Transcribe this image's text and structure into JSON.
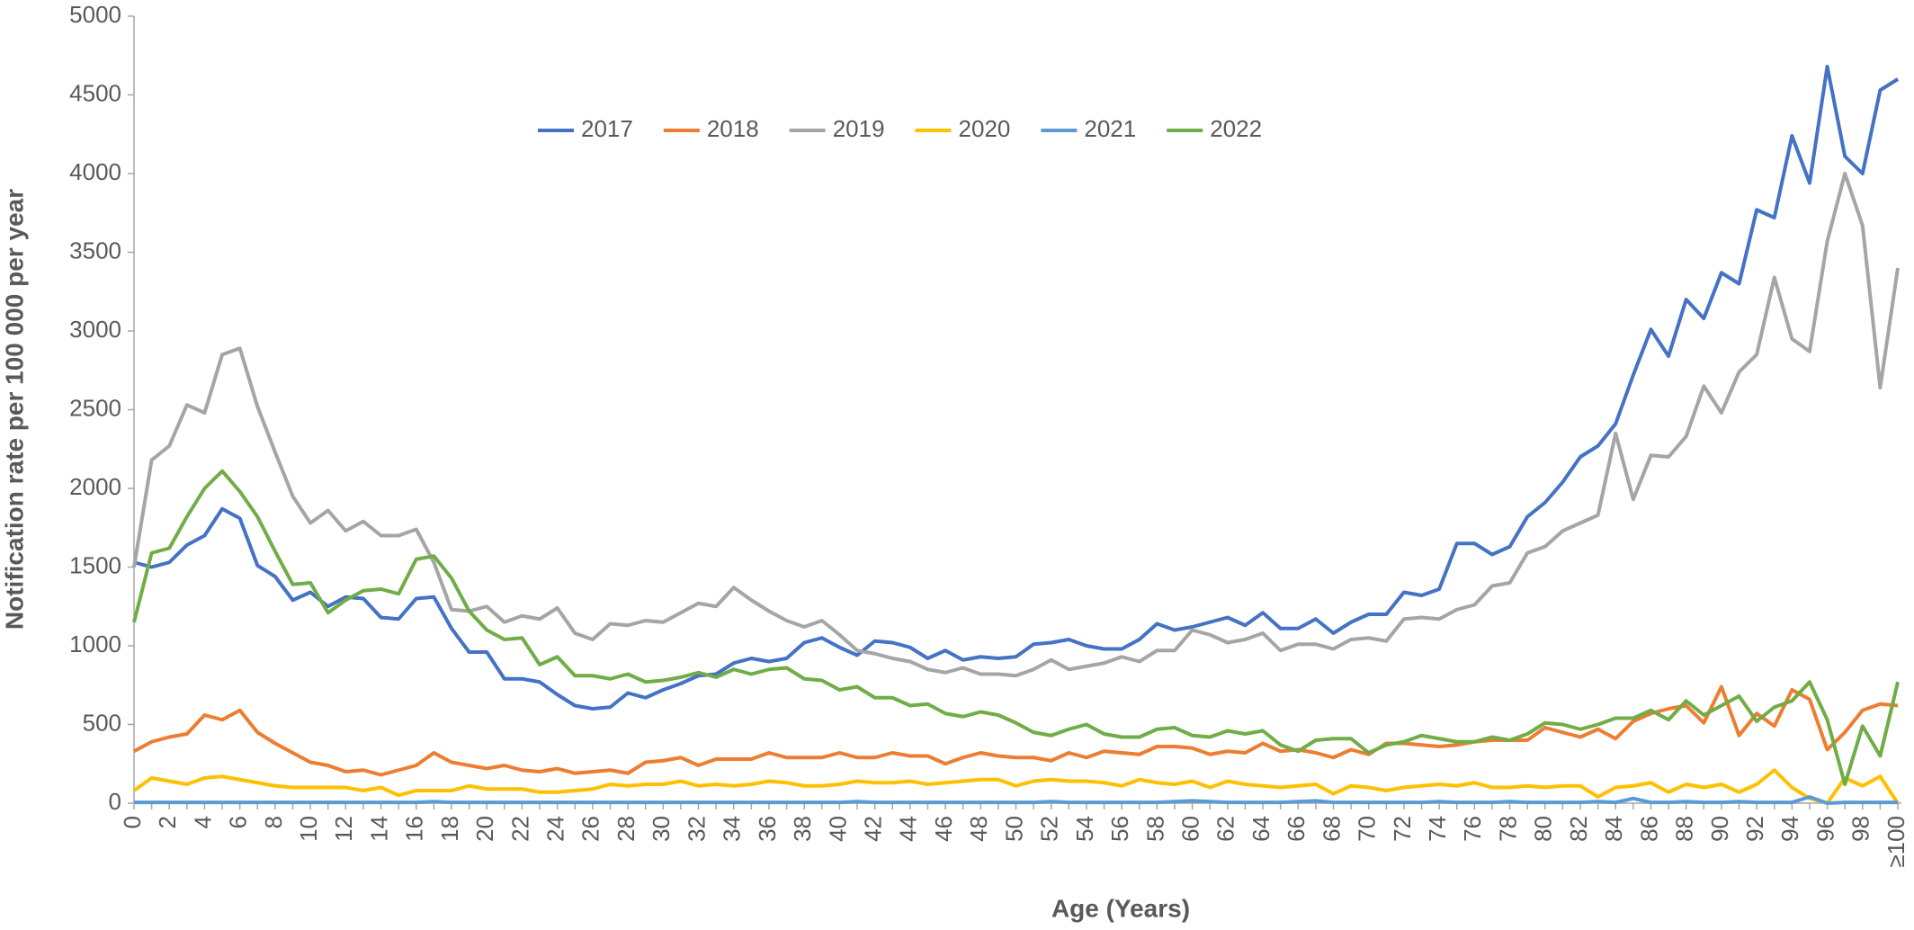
{
  "chart_data": {
    "type": "line",
    "x_label": "Age (Years)",
    "y_label": "Notification rate per 100 000 per year",
    "categories": [
      "0",
      null,
      "2",
      null,
      "4",
      null,
      "6",
      null,
      "8",
      null,
      "10",
      null,
      "12",
      null,
      "14",
      null,
      "16",
      null,
      "18",
      null,
      "20",
      null,
      "22",
      null,
      "24",
      null,
      "26",
      null,
      "28",
      null,
      "30",
      null,
      "32",
      null,
      "34",
      null,
      "36",
      null,
      "38",
      null,
      "40",
      null,
      "42",
      null,
      "44",
      null,
      "46",
      null,
      "48",
      null,
      "50",
      null,
      "52",
      null,
      "54",
      null,
      "56",
      null,
      "58",
      null,
      "60",
      null,
      "62",
      null,
      "64",
      null,
      "66",
      null,
      "68",
      null,
      "70",
      null,
      "72",
      null,
      "74",
      null,
      "76",
      null,
      "78",
      null,
      "80",
      null,
      "82",
      null,
      "84",
      null,
      "86",
      null,
      "88",
      null,
      "90",
      null,
      "92",
      null,
      "94",
      null,
      "96",
      null,
      "98",
      null,
      "≥100"
    ],
    "ylim": [
      0,
      5000
    ],
    "yticks": [
      0,
      500,
      1000,
      1500,
      2000,
      2500,
      3000,
      3500,
      4000,
      4500,
      5000
    ],
    "grid": false,
    "legend": "top",
    "series": [
      {
        "name": "2017",
        "color": "#4472c4",
        "values": [
          1530,
          1500,
          1530,
          1640,
          1700,
          1870,
          1810,
          1510,
          1440,
          1290,
          1340,
          1250,
          1310,
          1300,
          1180,
          1170,
          1300,
          1310,
          1110,
          960,
          960,
          790,
          790,
          770,
          690,
          620,
          600,
          610,
          700,
          670,
          720,
          760,
          810,
          820,
          890,
          920,
          900,
          920,
          1020,
          1050,
          990,
          940,
          1030,
          1020,
          990,
          920,
          970,
          910,
          930,
          920,
          930,
          1010,
          1020,
          1040,
          1000,
          980,
          980,
          1040,
          1140,
          1100,
          1120,
          1150,
          1180,
          1130,
          1210,
          1110,
          1110,
          1170,
          1080,
          1150,
          1200,
          1200,
          1340,
          1320,
          1360,
          1650,
          1650,
          1580,
          1630,
          1820,
          1910,
          2040,
          2200,
          2270,
          2410,
          2720,
          3010,
          2840,
          3200,
          3080,
          3370,
          3300,
          3770,
          3720,
          4240,
          3940,
          4680,
          4110,
          4000,
          4530,
          4600
        ]
      },
      {
        "name": "2018",
        "color": "#ed7d31",
        "values": [
          330,
          390,
          420,
          440,
          560,
          530,
          590,
          450,
          380,
          320,
          260,
          240,
          200,
          210,
          180,
          210,
          240,
          320,
          260,
          240,
          220,
          240,
          210,
          200,
          220,
          190,
          200,
          210,
          190,
          260,
          270,
          290,
          240,
          280,
          280,
          280,
          320,
          290,
          290,
          290,
          320,
          290,
          290,
          320,
          300,
          300,
          250,
          290,
          320,
          300,
          290,
          290,
          270,
          320,
          290,
          330,
          320,
          310,
          360,
          360,
          350,
          310,
          330,
          320,
          380,
          330,
          340,
          320,
          290,
          340,
          310,
          380,
          380,
          370,
          360,
          370,
          390,
          400,
          400,
          400,
          480,
          450,
          420,
          470,
          410,
          520,
          570,
          600,
          620,
          510,
          740,
          430,
          570,
          490,
          720,
          660,
          340,
          450,
          590,
          630,
          620
        ]
      },
      {
        "name": "2019",
        "color": "#a5a5a5",
        "values": [
          1500,
          2180,
          2270,
          2530,
          2480,
          2850,
          2890,
          2520,
          2230,
          1950,
          1780,
          1860,
          1730,
          1790,
          1700,
          1700,
          1740,
          1530,
          1230,
          1220,
          1250,
          1150,
          1190,
          1170,
          1240,
          1080,
          1040,
          1140,
          1130,
          1160,
          1150,
          1210,
          1270,
          1250,
          1370,
          1290,
          1220,
          1160,
          1120,
          1160,
          1070,
          970,
          950,
          920,
          900,
          850,
          830,
          860,
          820,
          820,
          810,
          850,
          910,
          850,
          870,
          890,
          930,
          900,
          970,
          970,
          1100,
          1070,
          1020,
          1040,
          1080,
          970,
          1010,
          1010,
          980,
          1040,
          1050,
          1030,
          1170,
          1180,
          1170,
          1230,
          1260,
          1380,
          1400,
          1590,
          1630,
          1730,
          1780,
          1830,
          2350,
          1930,
          2210,
          2200,
          2330,
          2650,
          2480,
          2740,
          2850,
          3340,
          2950,
          2870,
          3570,
          4000,
          3670,
          2640,
          3400
        ]
      },
      {
        "name": "2020",
        "color": "#ffc000",
        "values": [
          80,
          160,
          140,
          120,
          160,
          170,
          150,
          130,
          110,
          100,
          100,
          100,
          100,
          80,
          100,
          50,
          80,
          80,
          80,
          110,
          90,
          90,
          90,
          70,
          70,
          80,
          90,
          120,
          110,
          120,
          120,
          140,
          110,
          120,
          110,
          120,
          140,
          130,
          110,
          110,
          120,
          140,
          130,
          130,
          140,
          120,
          130,
          140,
          150,
          150,
          110,
          140,
          150,
          140,
          140,
          130,
          110,
          150,
          130,
          120,
          140,
          100,
          140,
          120,
          110,
          100,
          110,
          120,
          60,
          110,
          100,
          80,
          100,
          110,
          120,
          110,
          130,
          100,
          100,
          110,
          100,
          110,
          110,
          40,
          100,
          110,
          130,
          70,
          120,
          100,
          120,
          70,
          120,
          210,
          100,
          30,
          0,
          160,
          110,
          170,
          0
        ]
      },
      {
        "name": "2021",
        "color": "#5b9bd5",
        "values": [
          5,
          5,
          5,
          5,
          5,
          5,
          5,
          5,
          5,
          5,
          5,
          5,
          5,
          5,
          5,
          5,
          5,
          10,
          5,
          5,
          5,
          5,
          5,
          5,
          5,
          5,
          5,
          5,
          5,
          5,
          5,
          5,
          5,
          5,
          5,
          5,
          5,
          5,
          5,
          5,
          5,
          10,
          5,
          5,
          5,
          5,
          5,
          5,
          5,
          5,
          5,
          5,
          10,
          5,
          5,
          5,
          5,
          5,
          5,
          10,
          15,
          10,
          5,
          5,
          5,
          5,
          10,
          15,
          5,
          5,
          5,
          5,
          5,
          5,
          10,
          5,
          5,
          5,
          10,
          5,
          5,
          5,
          5,
          10,
          5,
          30,
          5,
          5,
          10,
          5,
          5,
          10,
          5,
          5,
          5,
          40,
          0,
          5,
          5,
          5,
          5
        ]
      },
      {
        "name": "2022",
        "color": "#70ad47",
        "values": [
          1150,
          1590,
          1620,
          1820,
          2000,
          2110,
          1980,
          1820,
          1600,
          1390,
          1400,
          1210,
          1290,
          1350,
          1360,
          1330,
          1550,
          1570,
          1430,
          1220,
          1100,
          1040,
          1050,
          880,
          930,
          810,
          810,
          790,
          820,
          770,
          780,
          800,
          830,
          800,
          850,
          820,
          850,
          860,
          790,
          780,
          720,
          740,
          670,
          670,
          620,
          630,
          570,
          550,
          580,
          560,
          510,
          450,
          430,
          470,
          500,
          440,
          420,
          420,
          470,
          480,
          430,
          420,
          460,
          440,
          460,
          370,
          330,
          400,
          410,
          410,
          320,
          370,
          390,
          430,
          410,
          390,
          390,
          420,
          400,
          440,
          510,
          500,
          470,
          500,
          540,
          540,
          590,
          530,
          650,
          560,
          620,
          680,
          520,
          610,
          650,
          770,
          530,
          120,
          490,
          300,
          770
        ]
      }
    ]
  }
}
